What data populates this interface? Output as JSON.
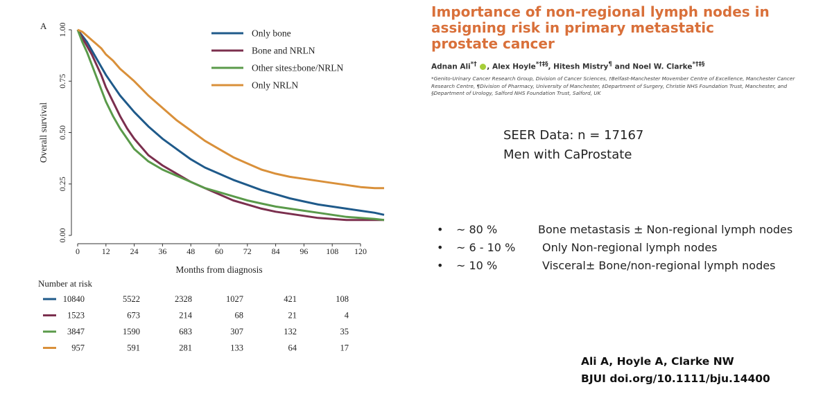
{
  "slide": {
    "paper_title": "Importance of non-regional lymph nodes in assigning risk in primary metastatic prostate cancer",
    "authors": [
      {
        "name": "Adnan Ali",
        "sup": "*†"
      },
      {
        "name": "Alex Hoyle",
        "sup": "*†‡§"
      },
      {
        "name": "Hitesh Mistry",
        "sup": "¶"
      },
      {
        "name": "Noel W. Clarke",
        "sup": "*†‡§"
      }
    ],
    "affiliations": "*Genito-Urinary Cancer Research Group, Division of Cancer Sciences, †Belfast-Manchester Movember Centre of Excellence, Manchester Cancer Research Centre, ¶Division of Pharmacy, University of Manchester, ‡Department of Surgery, Christie NHS Foundation Trust, Manchester, and §Department of Urology, Salford NHS Foundation Trust, Salford, UK",
    "seer_line1": "SEER Data: n = 17167",
    "seer_line2": "Men with CaProstate",
    "bullets": [
      {
        "bullet": "•",
        "percent": "~ 80 %",
        "text": "Bone metastasis ± Non-regional lymph nodes"
      },
      {
        "bullet": "•",
        "percent": "~ 6 - 10 %",
        "text": "Only Non-regional lymph nodes"
      },
      {
        "bullet": "•",
        "percent": "~ 10 %",
        "text": "Visceral± Bone/non-regional lymph nodes"
      }
    ],
    "citation_line1": "Ali A, Hoyle A, Clarke NW",
    "citation_line2": "BJUI doi.org/10.1111/bju.14400"
  },
  "chart_data": {
    "type": "line",
    "panel_label": "A",
    "xlabel": "Months from diagnosis",
    "ylabel": "Overall survival",
    "xlim": [
      0,
      130
    ],
    "ylim": [
      0,
      1
    ],
    "xticks": [
      0,
      12,
      24,
      36,
      48,
      60,
      72,
      84,
      96,
      108,
      120
    ],
    "yticks": [
      "0.00",
      "0.25",
      "0.50",
      "0.75",
      "1.00"
    ],
    "legend_position": "top-right",
    "series": [
      {
        "name": "Only bone",
        "color": "#1f5a8a",
        "x": [
          0,
          2,
          4,
          6,
          8,
          10,
          12,
          15,
          18,
          21,
          24,
          30,
          36,
          42,
          48,
          54,
          60,
          66,
          72,
          78,
          84,
          90,
          96,
          102,
          108,
          114,
          120,
          126,
          130
        ],
        "y": [
          1.0,
          0.97,
          0.94,
          0.9,
          0.86,
          0.82,
          0.78,
          0.73,
          0.68,
          0.64,
          0.6,
          0.53,
          0.47,
          0.42,
          0.37,
          0.33,
          0.3,
          0.27,
          0.245,
          0.22,
          0.2,
          0.18,
          0.165,
          0.15,
          0.14,
          0.13,
          0.12,
          0.11,
          0.1
        ]
      },
      {
        "name": "Bone and NRLN",
        "color": "#7b2f4e",
        "x": [
          0,
          2,
          4,
          6,
          8,
          10,
          12,
          15,
          18,
          21,
          24,
          30,
          36,
          42,
          48,
          54,
          60,
          66,
          72,
          78,
          84,
          90,
          96,
          102,
          108,
          114,
          120,
          126,
          130
        ],
        "y": [
          1.0,
          0.96,
          0.92,
          0.88,
          0.83,
          0.78,
          0.72,
          0.65,
          0.58,
          0.52,
          0.47,
          0.39,
          0.34,
          0.3,
          0.26,
          0.23,
          0.2,
          0.17,
          0.15,
          0.13,
          0.115,
          0.105,
          0.095,
          0.085,
          0.08,
          0.075,
          0.075,
          0.075,
          0.075
        ]
      },
      {
        "name": "Other sites±bone/NRLN",
        "color": "#5a9a4a",
        "x": [
          0,
          2,
          4,
          6,
          8,
          10,
          12,
          15,
          18,
          21,
          24,
          30,
          36,
          42,
          48,
          54,
          60,
          66,
          72,
          78,
          84,
          90,
          96,
          102,
          108,
          114,
          120,
          126,
          130
        ],
        "y": [
          1.0,
          0.94,
          0.89,
          0.83,
          0.77,
          0.71,
          0.65,
          0.58,
          0.52,
          0.47,
          0.42,
          0.36,
          0.32,
          0.29,
          0.26,
          0.23,
          0.21,
          0.19,
          0.17,
          0.155,
          0.14,
          0.13,
          0.12,
          0.11,
          0.1,
          0.09,
          0.085,
          0.08,
          0.075
        ]
      },
      {
        "name": "Only NRLN",
        "color": "#d9903a",
        "x": [
          0,
          2,
          4,
          6,
          8,
          10,
          12,
          15,
          18,
          21,
          24,
          30,
          36,
          42,
          48,
          54,
          60,
          66,
          72,
          78,
          84,
          90,
          96,
          102,
          108,
          114,
          120,
          126,
          130
        ],
        "y": [
          1.0,
          0.99,
          0.97,
          0.95,
          0.93,
          0.91,
          0.88,
          0.85,
          0.81,
          0.78,
          0.75,
          0.68,
          0.62,
          0.56,
          0.51,
          0.46,
          0.42,
          0.38,
          0.35,
          0.32,
          0.3,
          0.285,
          0.275,
          0.265,
          0.255,
          0.245,
          0.235,
          0.23,
          0.23
        ]
      }
    ],
    "risk_table": {
      "title": "Number at risk",
      "rows": [
        {
          "color": "#1f5a8a",
          "values": [
            "10840",
            "5522",
            "2328",
            "1027",
            "421",
            "108"
          ]
        },
        {
          "color": "#7b2f4e",
          "values": [
            "1523",
            "673",
            "214",
            "68",
            "21",
            "4"
          ]
        },
        {
          "color": "#5a9a4a",
          "values": [
            "3847",
            "1590",
            "683",
            "307",
            "132",
            "35"
          ]
        },
        {
          "color": "#d9903a",
          "values": [
            "957",
            "591",
            "281",
            "133",
            "64",
            "17"
          ]
        }
      ]
    }
  }
}
